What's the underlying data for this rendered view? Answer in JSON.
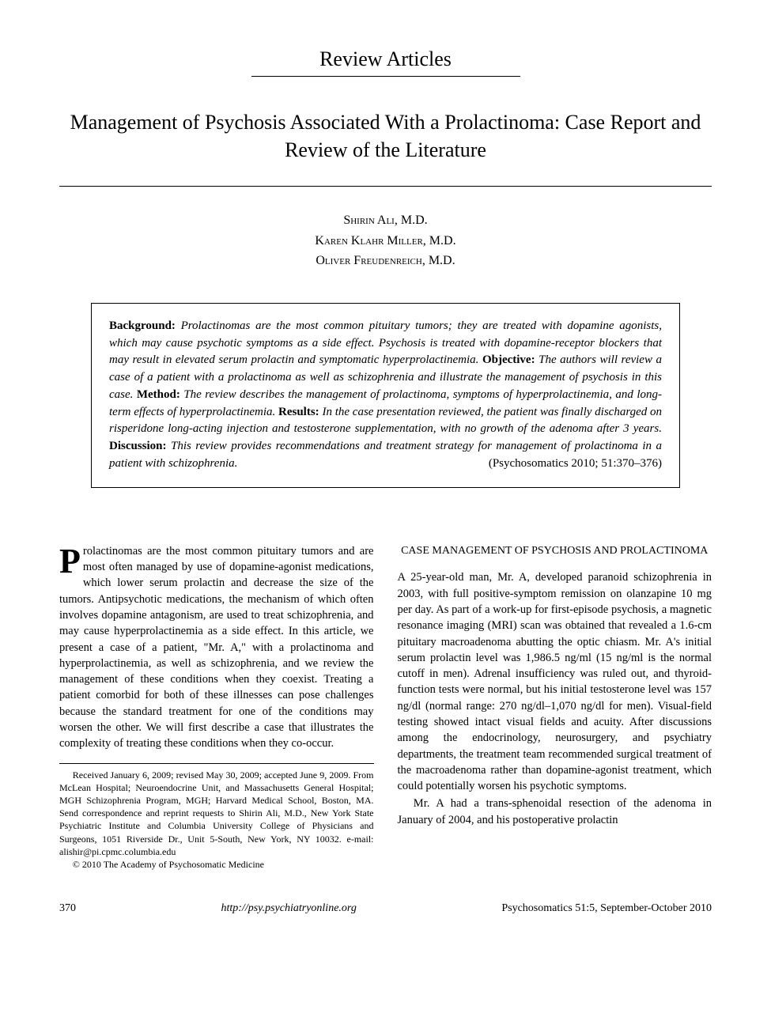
{
  "section_label": "Review Articles",
  "title": "Management of Psychosis Associated With a Prolactinoma: Case Report and Review of the Literature",
  "authors": [
    "Shirin Ali, M.D.",
    "Karen Klahr Miller, M.D.",
    "Oliver Freudenreich, M.D."
  ],
  "abstract": {
    "background_label": "Background:",
    "background": "Prolactinomas are the most common pituitary tumors; they are treated with dopamine agonists, which may cause psychotic symptoms as a side effect. Psychosis is treated with dopamine-receptor blockers that may result in elevated serum prolactin and symptomatic hyperprolactinemia.",
    "objective_label": "Objective:",
    "objective": "The authors will review a case of a patient with a prolactinoma as well as schizophrenia and illustrate the management of psychosis in this case.",
    "method_label": "Method:",
    "method": "The review describes the management of prolactinoma, symptoms of hyperprolactinemia, and long-term effects of hyperprolactinemia.",
    "results_label": "Results:",
    "results": "In the case presentation reviewed, the patient was finally discharged on risperidone long-acting injection and testosterone supplementation, with no growth of the adenoma after 3 years.",
    "discussion_label": "Discussion:",
    "discussion": "This review provides recommendations and treatment strategy for management of prolactinoma in a patient with schizophrenia.",
    "citation": "(Psychosomatics 2010; 51:370–376)"
  },
  "intro": {
    "dropcap": "P",
    "first_rest": "rolactinomas are the most common pituitary tumors and are most often managed by use of dopamine-agonist medications, which lower serum prolactin and decrease the size of the tumors. Antipsychotic medications, the mechanism of which often involves dopamine antagonism, are used to treat schizophrenia, and may cause hyperprolactinemia as a side effect. In this article, we present a case of a patient, \"Mr. A,\" with a prolactinoma and hyperprolactinemia, as well as schizophrenia, and we review the management of these conditions when they coexist. Treating a patient comorbid for both of these illnesses can pose challenges because the standard treatment for one of the conditions may worsen the other. We will first describe a case that illustrates the complexity of treating these conditions when they co-occur."
  },
  "footnote": {
    "text": "Received January 6, 2009; revised May 30, 2009; accepted June 9, 2009. From McLean Hospital; Neuroendocrine Unit, and Massachusetts General Hospital; MGH Schizophrenia Program, MGH; Harvard Medical School, Boston, MA. Send correspondence and reprint requests to Shirin Ali, M.D., New York State Psychiatric Institute and Columbia University College of Physicians and Surgeons, 1051 Riverside Dr., Unit 5-South, New York, NY 10032. e-mail: alishir@pi.cpmc.columbia.edu",
    "copyright": "© 2010 The Academy of Psychosomatic Medicine"
  },
  "case_section": {
    "heading": "CASE MANAGEMENT OF PSYCHOSIS AND PROLACTINOMA",
    "p1": "A 25-year-old man, Mr. A, developed paranoid schizophrenia in 2003, with full positive-symptom remission on olanzapine 10 mg per day. As part of a work-up for first-episode psychosis, a magnetic resonance imaging (MRI) scan was obtained that revealed a 1.6-cm pituitary macroadenoma abutting the optic chiasm. Mr. A's initial serum prolactin level was 1,986.5 ng/ml (15 ng/ml is the normal cutoff in men). Adrenal insufficiency was ruled out, and thyroid-function tests were normal, but his initial testosterone level was 157 ng/dl (normal range: 270 ng/dl–1,070 ng/dl for men). Visual-field testing showed intact visual fields and acuity. After discussions among the endocrinology, neurosurgery, and psychiatry departments, the treatment team recommended surgical treatment of the macroadenoma rather than dopamine-agonist treatment, which could potentially worsen his psychotic symptoms.",
    "p2": "Mr. A had a trans-sphenoidal resection of the adenoma in January of 2004, and his postoperative prolactin"
  },
  "footer": {
    "page": "370",
    "url": "http://psy.psychiatryonline.org",
    "journal": "Psychosomatics 51:5, September-October 2010"
  }
}
